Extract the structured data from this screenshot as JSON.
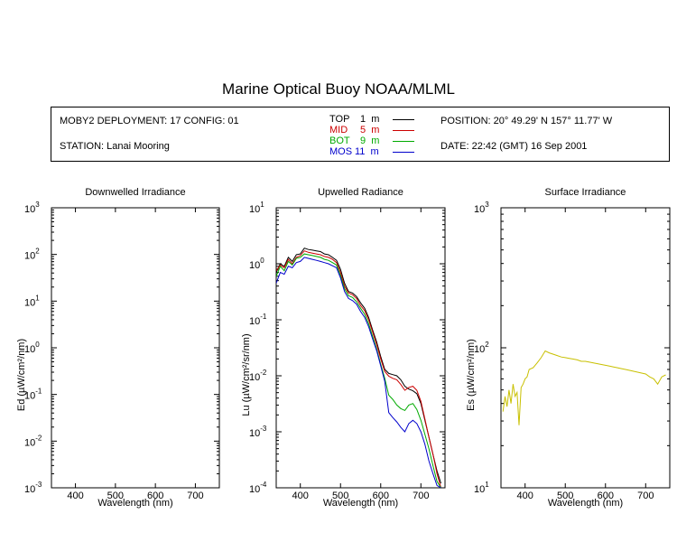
{
  "title": "Marine Optical Buoy NOAA/MLML",
  "info": {
    "deployment": "MOBY2 DEPLOYMENT: 17 CONFIG: 01",
    "station": "STATION: Lanai Mooring",
    "position": "POSITION: 20° 49.29' N   157° 11.77' W",
    "date": "DATE: 22:42 (GMT) 16 Sep 2001"
  },
  "legend": [
    {
      "label": "TOP",
      "depth": "1",
      "unit": "m",
      "color": "#000000"
    },
    {
      "label": "MID",
      "depth": "5",
      "unit": "m",
      "color": "#cc0000"
    },
    {
      "label": "BOT",
      "depth": "9",
      "unit": "m",
      "color": "#00aa00"
    },
    {
      "label": "MOS",
      "depth": "11",
      "unit": "m",
      "color": "#0000cc"
    }
  ],
  "chart_data": [
    {
      "type": "line",
      "title": "Downwelled Irradiance",
      "xlabel": "Wavelength (nm)",
      "ylabel": "Ed  (µW/cm²/nm)",
      "xlim": [
        340,
        760
      ],
      "ylim": [
        0.001,
        1000
      ],
      "yscale": "log",
      "xticks": [
        400,
        500,
        600,
        700
      ],
      "yticks": [
        {
          "mant": "10",
          "exp": "3",
          "value": 1000
        },
        {
          "mant": "10",
          "exp": "2",
          "value": 100
        },
        {
          "mant": "10",
          "exp": "1",
          "value": 10
        },
        {
          "mant": "10",
          "exp": "0",
          "value": 1
        },
        {
          "mant": "10",
          "exp": "-1",
          "value": 0.1
        },
        {
          "mant": "10",
          "exp": "-2",
          "value": 0.01
        },
        {
          "mant": "10",
          "exp": "-3",
          "value": 0.001
        }
      ],
      "series": []
    },
    {
      "type": "line",
      "title": "Upwelled Radiance",
      "xlabel": "Wavelength (nm)",
      "ylabel": "Lu  (µW/cm²/sr/nm)",
      "xlim": [
        340,
        760
      ],
      "ylim": [
        0.0001,
        10
      ],
      "yscale": "log",
      "xticks": [
        400,
        500,
        600,
        700
      ],
      "yticks": [
        {
          "mant": "10",
          "exp": "1",
          "value": 10
        },
        {
          "mant": "10",
          "exp": "0",
          "value": 1
        },
        {
          "mant": "10",
          "exp": "-1",
          "value": 0.1
        },
        {
          "mant": "10",
          "exp": "-2",
          "value": 0.01
        },
        {
          "mant": "10",
          "exp": "-3",
          "value": 0.001
        },
        {
          "mant": "10",
          "exp": "-4",
          "value": 0.0001
        }
      ],
      "series": [
        {
          "name": "TOP",
          "color": "#000000",
          "x": [
            340,
            350,
            360,
            370,
            380,
            390,
            400,
            410,
            420,
            430,
            440,
            450,
            460,
            470,
            480,
            490,
            500,
            510,
            520,
            530,
            540,
            550,
            560,
            570,
            580,
            590,
            600,
            610,
            620,
            630,
            640,
            650,
            660,
            670,
            680,
            690,
            700,
            710,
            720,
            730,
            740,
            750
          ],
          "y": [
            0.7,
            1.0,
            0.9,
            1.3,
            1.1,
            1.45,
            1.5,
            1.9,
            1.8,
            1.75,
            1.7,
            1.65,
            1.5,
            1.45,
            1.3,
            1.15,
            0.8,
            0.45,
            0.32,
            0.3,
            0.26,
            0.2,
            0.16,
            0.11,
            0.065,
            0.04,
            0.022,
            0.013,
            0.011,
            0.0105,
            0.01,
            0.0085,
            0.0065,
            0.0058,
            0.0054,
            0.0048,
            0.0032,
            0.0016,
            0.0008,
            0.0004,
            0.0002,
            0.00012
          ]
        },
        {
          "name": "MID",
          "color": "#cc0000",
          "x": [
            340,
            350,
            360,
            370,
            380,
            390,
            400,
            410,
            420,
            430,
            440,
            450,
            460,
            470,
            480,
            490,
            500,
            510,
            520,
            530,
            540,
            550,
            560,
            570,
            580,
            590,
            600,
            610,
            620,
            630,
            640,
            650,
            660,
            670,
            680,
            690,
            700,
            710,
            720,
            730,
            740,
            750
          ],
          "y": [
            0.75,
            0.95,
            0.85,
            1.2,
            1.0,
            1.3,
            1.4,
            1.7,
            1.6,
            1.55,
            1.5,
            1.45,
            1.35,
            1.3,
            1.2,
            1.05,
            0.7,
            0.4,
            0.3,
            0.28,
            0.24,
            0.18,
            0.145,
            0.1,
            0.06,
            0.036,
            0.02,
            0.012,
            0.0098,
            0.009,
            0.0085,
            0.007,
            0.0055,
            0.0062,
            0.0065,
            0.0055,
            0.0035,
            0.0017,
            0.0008,
            0.0004,
            0.00018,
            0.0001
          ]
        },
        {
          "name": "BOT",
          "color": "#00aa00",
          "x": [
            340,
            350,
            360,
            370,
            380,
            390,
            400,
            410,
            420,
            430,
            440,
            450,
            460,
            470,
            480,
            490,
            500,
            510,
            520,
            530,
            540,
            550,
            560,
            570,
            580,
            590,
            600,
            610,
            620,
            630,
            640,
            650,
            660,
            670,
            680,
            690,
            700,
            710,
            720,
            730,
            740,
            750
          ],
          "y": [
            0.6,
            0.9,
            0.75,
            1.1,
            0.95,
            1.25,
            1.3,
            1.5,
            1.45,
            1.4,
            1.35,
            1.3,
            1.2,
            1.15,
            1.05,
            0.95,
            0.62,
            0.36,
            0.27,
            0.25,
            0.21,
            0.16,
            0.125,
            0.085,
            0.05,
            0.03,
            0.016,
            0.009,
            0.0045,
            0.0038,
            0.003,
            0.0026,
            0.0024,
            0.003,
            0.0032,
            0.0025,
            0.0016,
            0.0009,
            0.0005,
            0.00025,
            0.00013,
            0.0001
          ]
        },
        {
          "name": "MOS",
          "color": "#0000cc",
          "x": [
            340,
            350,
            360,
            370,
            380,
            390,
            400,
            410,
            420,
            430,
            440,
            450,
            460,
            470,
            480,
            490,
            500,
            510,
            520,
            530,
            540,
            550,
            560,
            570,
            580,
            590,
            600,
            610,
            620,
            630,
            640,
            650,
            660,
            670,
            680,
            690,
            700,
            710,
            720,
            730,
            740,
            750
          ],
          "y": [
            0.45,
            0.7,
            0.65,
            0.9,
            0.85,
            1.05,
            1.1,
            1.3,
            1.25,
            1.2,
            1.15,
            1.1,
            1.05,
            1.0,
            0.92,
            0.85,
            0.56,
            0.32,
            0.24,
            0.22,
            0.19,
            0.14,
            0.11,
            0.075,
            0.045,
            0.028,
            0.015,
            0.008,
            0.0022,
            0.0018,
            0.0015,
            0.0012,
            0.001,
            0.0014,
            0.0016,
            0.0014,
            0.001,
            0.0006,
            0.0003,
            0.00018,
            0.00011,
            0.0001
          ]
        }
      ]
    },
    {
      "type": "line",
      "title": "Surface Irradiance",
      "xlabel": "Wavelength (nm)",
      "ylabel": "Es  (µW/cm²/nm)",
      "xlim": [
        340,
        760
      ],
      "ylim": [
        10,
        1000
      ],
      "yscale": "log",
      "xticks": [
        400,
        500,
        600,
        700
      ],
      "yticks": [
        {
          "mant": "10",
          "exp": "3",
          "value": 1000
        },
        {
          "mant": "10",
          "exp": "2",
          "value": 100
        },
        {
          "mant": "10",
          "exp": "1",
          "value": 10
        }
      ],
      "series": [
        {
          "name": "",
          "color": "#c8c000",
          "x": [
            345,
            350,
            355,
            360,
            365,
            370,
            375,
            380,
            385,
            390,
            395,
            400,
            405,
            410,
            420,
            430,
            440,
            450,
            460,
            470,
            480,
            490,
            500,
            510,
            520,
            530,
            540,
            550,
            560,
            570,
            580,
            590,
            600,
            610,
            620,
            630,
            640,
            650,
            660,
            670,
            680,
            690,
            700,
            710,
            720,
            730,
            740,
            750
          ],
          "y": [
            35,
            45,
            38,
            50,
            40,
            55,
            45,
            48,
            28,
            52,
            55,
            60,
            62,
            70,
            72,
            78,
            85,
            95,
            92,
            90,
            88,
            86,
            85,
            84,
            83,
            82,
            80,
            80,
            79,
            78,
            77,
            76,
            75,
            74,
            73,
            72,
            71,
            70,
            69,
            68,
            67,
            66,
            65,
            62,
            60,
            55,
            62,
            64
          ]
        }
      ]
    }
  ]
}
